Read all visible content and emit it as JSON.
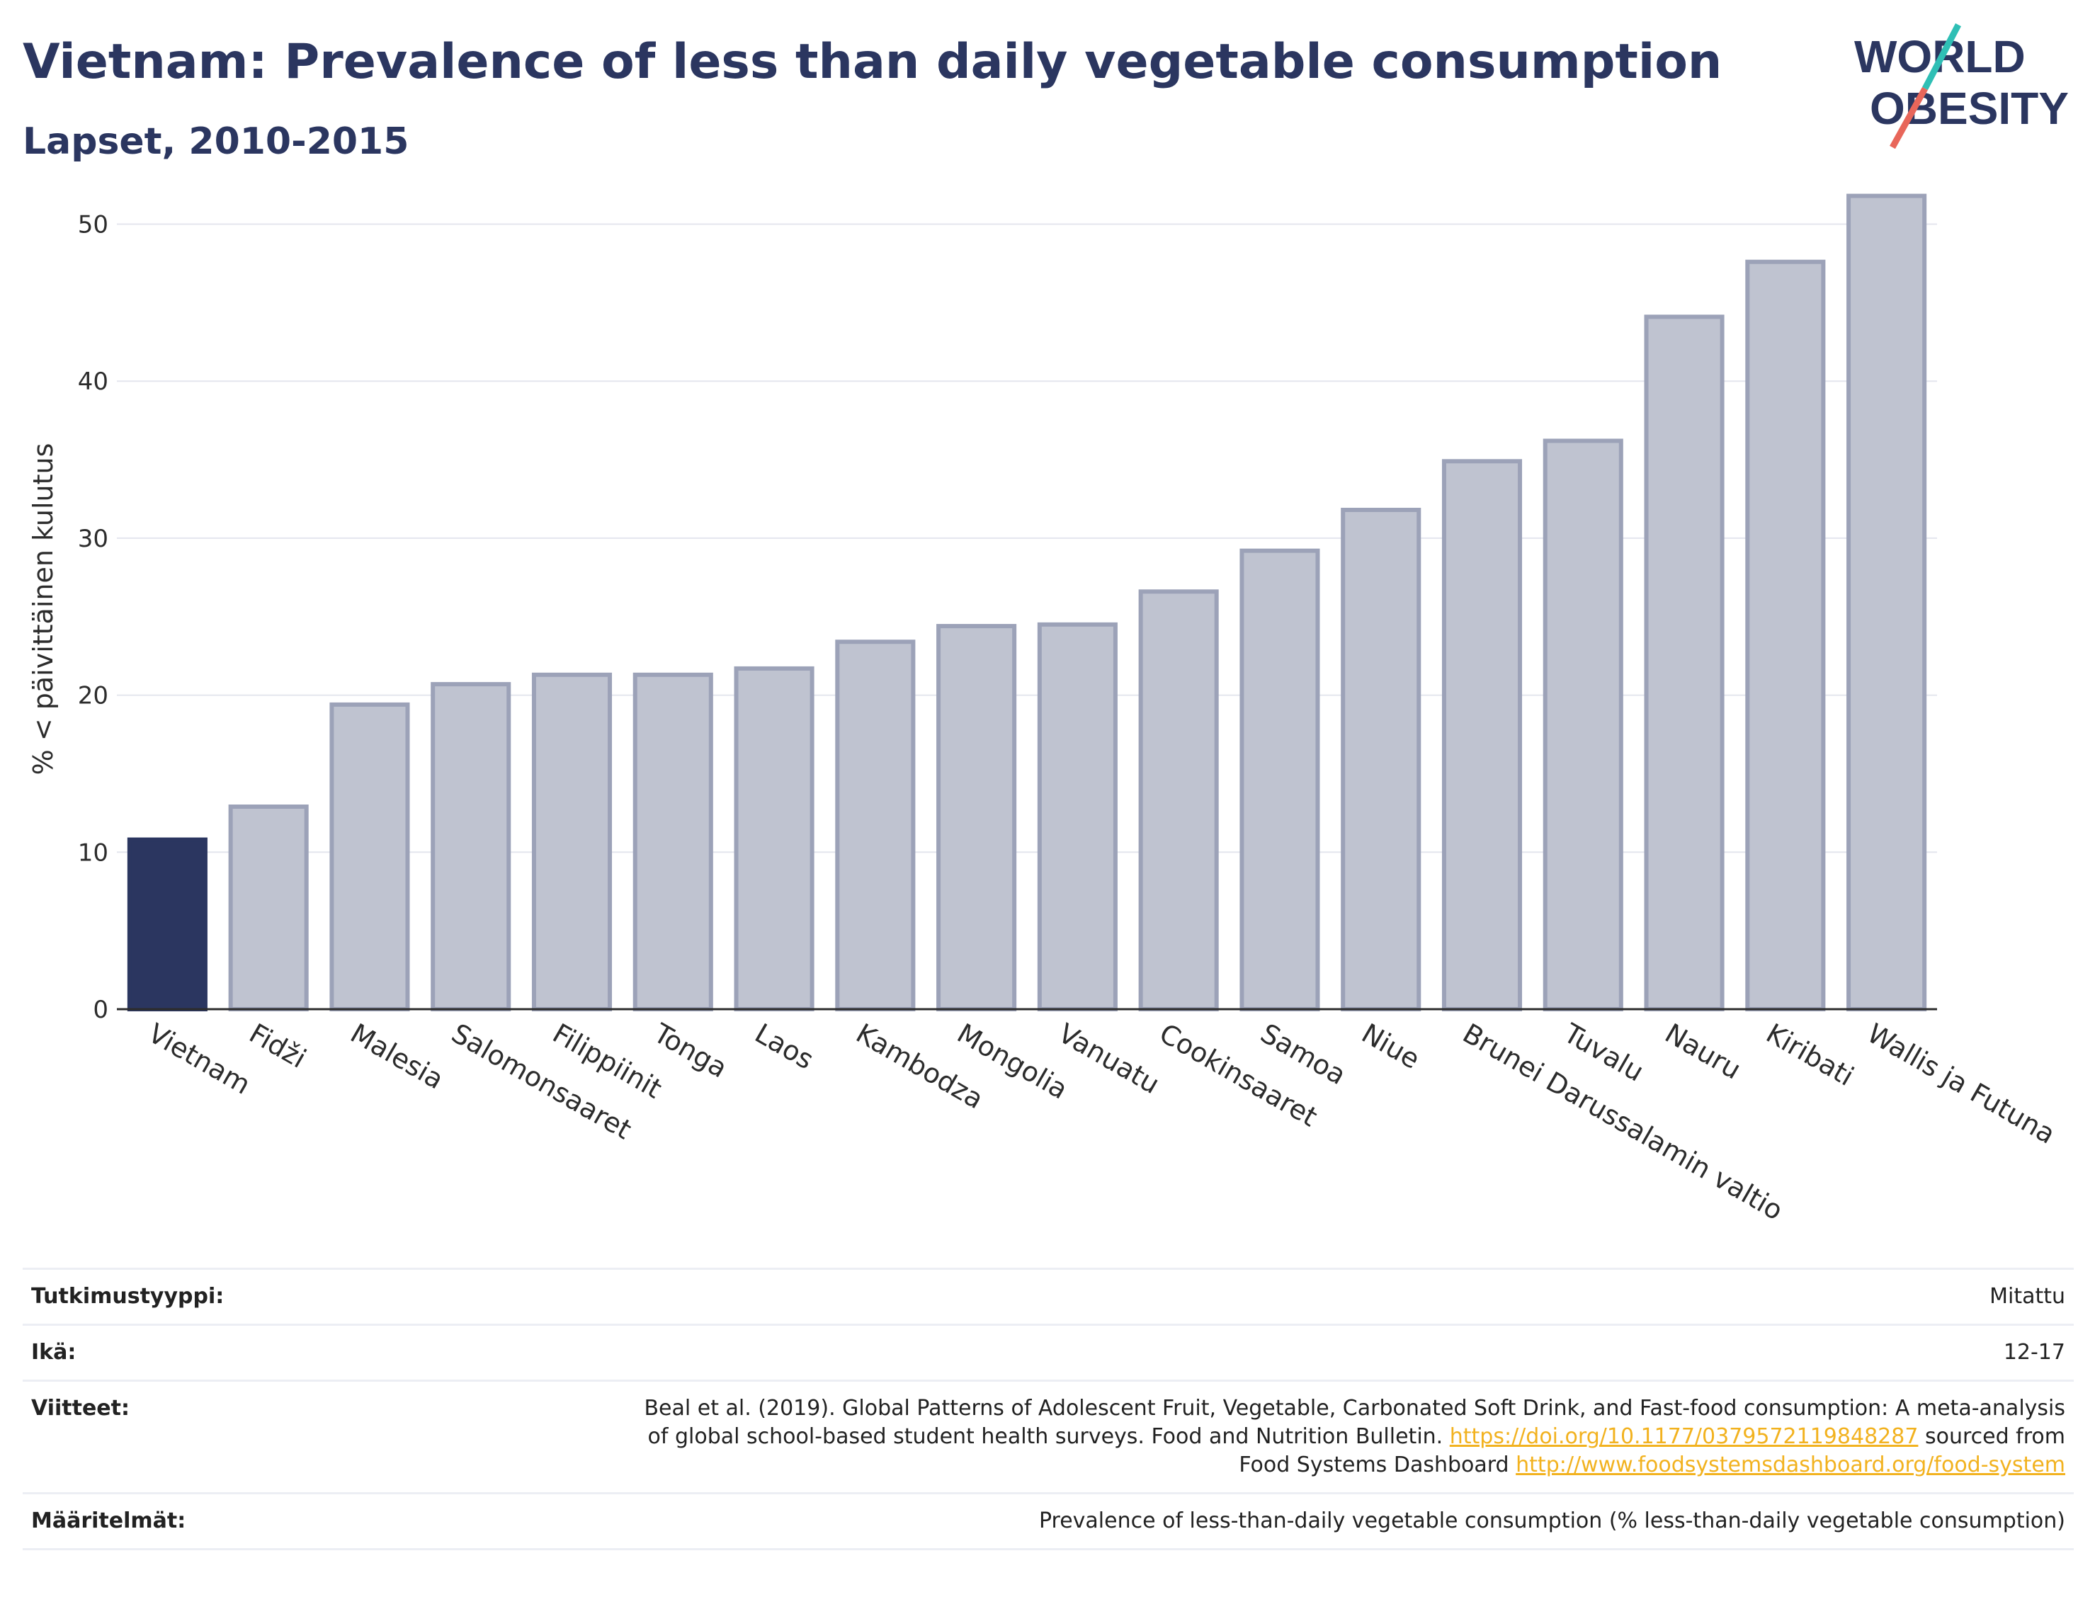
{
  "header": {
    "title": "Vietnam: Prevalence of less than daily vegetable consumption",
    "subtitle": "Lapset, 2010-2015"
  },
  "logo": {
    "line1": "WORLD",
    "line2": "OBESITY",
    "colors": {
      "text": "#2b3660",
      "slash_teal": "#2fbfb5",
      "slash_coral": "#e8665a"
    }
  },
  "colors": {
    "highlight_bar": "#2b3660",
    "other_bar_fill": "#bfc3d0",
    "other_bar_stroke": "#9ca2b8"
  },
  "chart_data": {
    "type": "bar",
    "title": "Vietnam: Prevalence of less than daily vegetable consumption",
    "subtitle": "Lapset, 2010-2015",
    "xlabel": "",
    "ylabel": "% < päivittäinen kulutus",
    "ylim": [
      0,
      53
    ],
    "yticks": [
      0,
      10,
      20,
      30,
      40,
      50
    ],
    "grid": true,
    "highlight": "Vietnam",
    "categories": [
      "Vietnam",
      "Fidži",
      "Malesia",
      "Salomonsaaret",
      "Filippiinit",
      "Tonga",
      "Laos",
      "Kambodza",
      "Mongolia",
      "Vanuatu",
      "Cookinsaaret",
      "Samoa",
      "Niue",
      "Brunei Darussalamin valtio",
      "Tuvalu",
      "Nauru",
      "Kiribati",
      "Wallis ja Futuna"
    ],
    "values": [
      10.8,
      12.9,
      19.4,
      20.7,
      21.3,
      21.3,
      21.7,
      23.4,
      24.4,
      24.5,
      26.6,
      29.2,
      31.8,
      34.9,
      36.2,
      44.1,
      47.6,
      51.8
    ]
  },
  "info": {
    "rows": [
      {
        "key": "Tutkimustyyppi:",
        "value": "Mitattu"
      },
      {
        "key": "Ikä:",
        "value": "12-17"
      },
      {
        "key": "Viitteet:",
        "value_line1": "Beal et al. (2019). Global Patterns of Adolescent Fruit, Vegetable, Carbonated Soft Drink, and Fast-food consumption: A meta-analysis",
        "value_line2_pre": "of global school-based student health surveys. Food and Nutrition Bulletin.",
        "link1": "https://doi.org/10.1177/0379572119848287",
        "value_line2_post": "sourced from",
        "value_line3_pre": "Food Systems Dashboard",
        "link2": "http://www.foodsystemsdashboard.org/food-system"
      },
      {
        "key": "Määritelmät:",
        "value": "Prevalence of less-than-daily vegetable consumption (% less-than-daily vegetable consumption)"
      }
    ]
  }
}
